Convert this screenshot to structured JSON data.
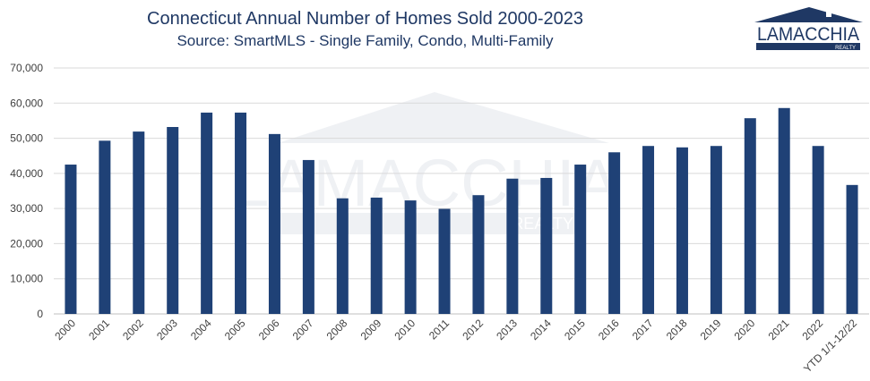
{
  "chart_data": {
    "type": "bar",
    "title": "Connecticut Annual Number of Homes Sold 2000-2023",
    "subtitle": "Source: SmartMLS - Single Family, Condo, Multi-Family",
    "categories": [
      "2000",
      "2001",
      "2002",
      "2003",
      "2004",
      "2005",
      "2006",
      "2007",
      "2008",
      "2009",
      "2010",
      "2011",
      "2012",
      "2013",
      "2014",
      "2015",
      "2016",
      "2017",
      "2018",
      "2019",
      "2020",
      "2021",
      "2022",
      "YTD 1/1-12/22"
    ],
    "values": [
      42500,
      49300,
      51900,
      53200,
      57300,
      57300,
      51200,
      43800,
      32900,
      33100,
      32300,
      29900,
      33800,
      38500,
      38700,
      42500,
      46000,
      47800,
      47400,
      47800,
      55700,
      58600,
      47800,
      36700
    ],
    "ylim": [
      0,
      70000
    ],
    "yticks": [
      0,
      10000,
      20000,
      30000,
      40000,
      50000,
      60000,
      70000
    ],
    "ytick_labels": [
      "0",
      "10,000",
      "20,000",
      "30,000",
      "40,000",
      "50,000",
      "60,000",
      "70,000"
    ],
    "grid": true,
    "bar_color": "#1f4176",
    "xlabel": "",
    "ylabel": ""
  },
  "logo": {
    "text": "LAMACCHIA",
    "subtext": "REALTY",
    "color": "#1f3864"
  },
  "watermark": {
    "text": "LAMACCHIA",
    "subtext": "REALTY"
  }
}
